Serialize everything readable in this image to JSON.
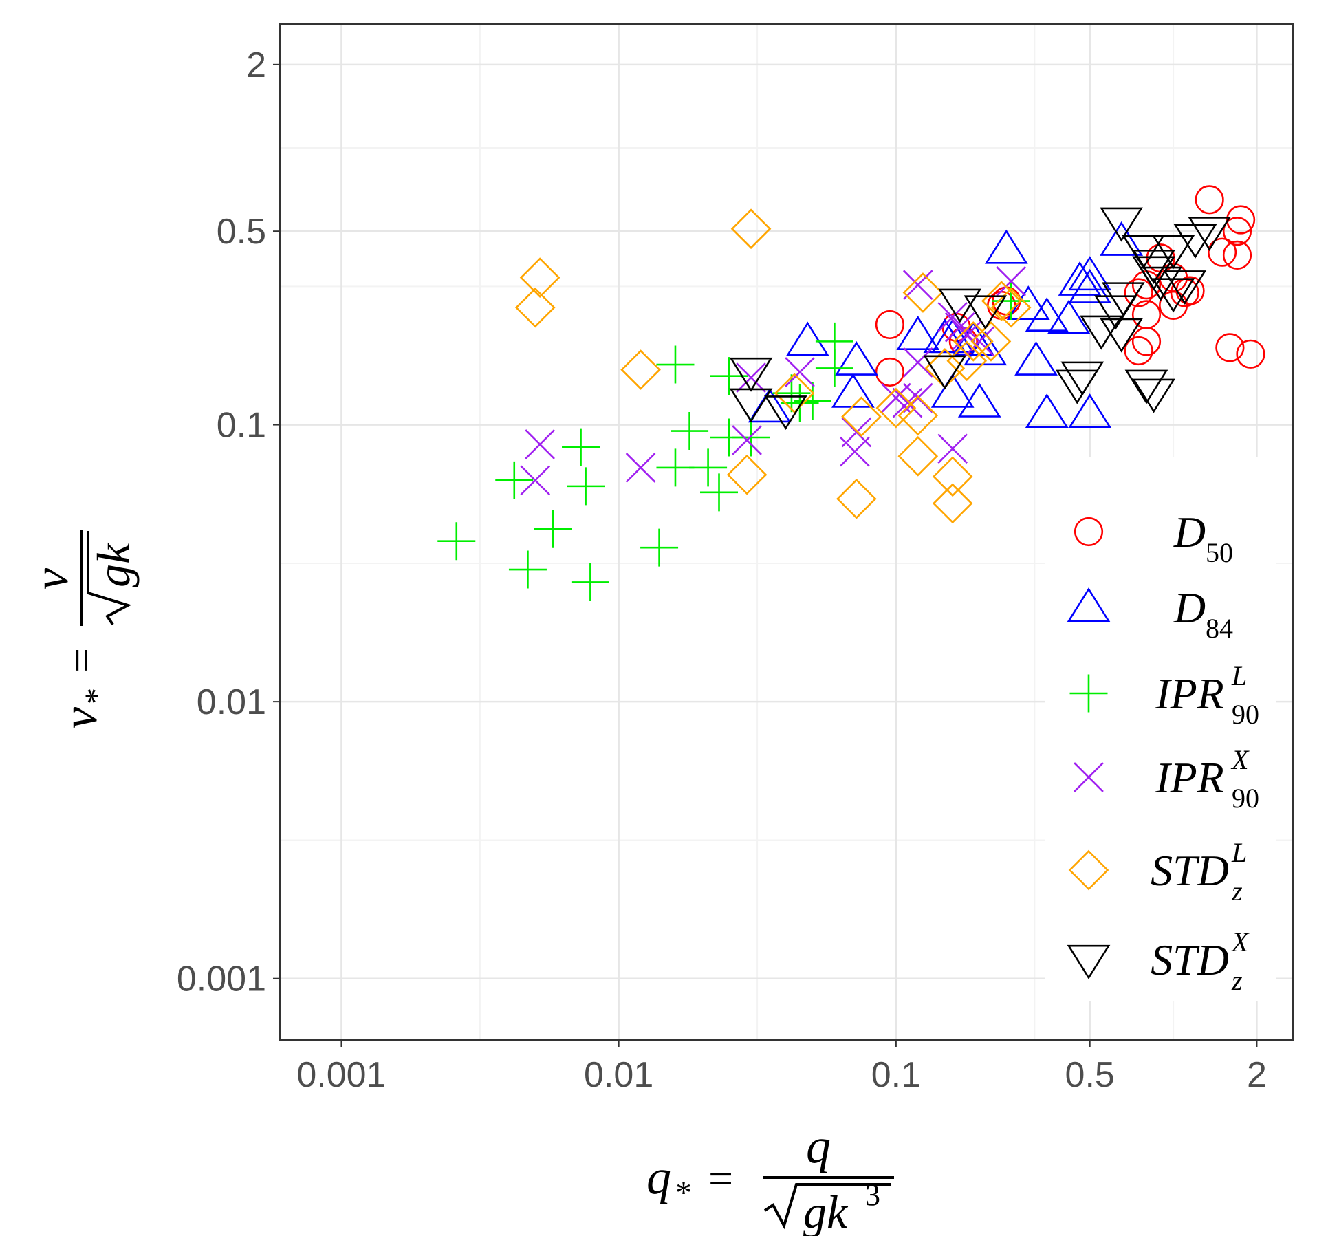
{
  "chart_data": {
    "type": "scatter",
    "x_scale": "log",
    "y_scale": "log",
    "xlim": [
      0.0006,
      2.7
    ],
    "ylim": [
      0.0006,
      2.8
    ],
    "x_ticks": [
      {
        "value": 0.001,
        "label": "0.001"
      },
      {
        "value": 0.01,
        "label": "0.01"
      },
      {
        "value": 0.1,
        "label": "0.1"
      },
      {
        "value": 0.5,
        "label": "0.5"
      },
      {
        "value": 2,
        "label": "2"
      }
    ],
    "y_ticks": [
      {
        "value": 0.001,
        "label": "0.001"
      },
      {
        "value": 0.01,
        "label": "0.01"
      },
      {
        "value": 0.1,
        "label": "0.1"
      },
      {
        "value": 0.5,
        "label": "0.5"
      },
      {
        "value": 2,
        "label": "2"
      }
    ],
    "x_minor_grid": [
      0.00316,
      0.0316,
      0.316,
      1
    ],
    "y_minor_grid": [
      0.00316,
      0.0316,
      0.316,
      1
    ],
    "grid": true,
    "legend_position": "right",
    "xlabel": {
      "lhs": "q",
      "lhs_sub": "*",
      "num": "q",
      "den": "gk",
      "den_sup": "3"
    },
    "ylabel": {
      "lhs": "v",
      "lhs_sub": "*",
      "num": "v",
      "den": "gk"
    },
    "series": [
      {
        "name": "D50",
        "label_main": "D",
        "label_sub": "50",
        "label_sup": "",
        "marker": "circle",
        "color": "#ff0000",
        "points": [
          [
            0.095,
            0.23
          ],
          [
            0.095,
            0.155
          ],
          [
            0.165,
            0.225
          ],
          [
            0.175,
            0.2
          ],
          [
            0.24,
            0.27
          ],
          [
            0.25,
            0.28
          ],
          [
            0.8,
            0.32
          ],
          [
            0.75,
            0.3
          ],
          [
            0.9,
            0.4
          ],
          [
            1.0,
            0.34
          ],
          [
            1.1,
            0.3
          ],
          [
            1.15,
            0.305
          ],
          [
            1.0,
            0.27
          ],
          [
            0.8,
            0.25
          ],
          [
            1.35,
            0.65
          ],
          [
            1.5,
            0.42
          ],
          [
            1.7,
            0.5
          ],
          [
            1.75,
            0.55
          ],
          [
            1.7,
            0.41
          ],
          [
            1.6,
            0.19
          ],
          [
            1.9,
            0.18
          ],
          [
            0.75,
            0.185
          ],
          [
            0.8,
            0.2
          ]
        ]
      },
      {
        "name": "D84",
        "label_main": "D",
        "label_sub": "84",
        "label_sup": "",
        "marker": "triangle-up",
        "color": "#0000ff",
        "points": [
          [
            0.035,
            0.115
          ],
          [
            0.048,
            0.2
          ],
          [
            0.07,
            0.13
          ],
          [
            0.072,
            0.17
          ],
          [
            0.12,
            0.21
          ],
          [
            0.16,
            0.205
          ],
          [
            0.16,
            0.13
          ],
          [
            0.19,
            0.2
          ],
          [
            0.2,
            0.12
          ],
          [
            0.25,
            0.43
          ],
          [
            0.3,
            0.27
          ],
          [
            0.32,
            0.17
          ],
          [
            0.35,
            0.245
          ],
          [
            0.35,
            0.11
          ],
          [
            0.42,
            0.24
          ],
          [
            0.46,
            0.33
          ],
          [
            0.5,
            0.31
          ],
          [
            0.5,
            0.345
          ],
          [
            0.5,
            0.11
          ],
          [
            0.65,
            0.46
          ],
          [
            0.21,
            0.185
          ],
          [
            0.15,
            0.205
          ]
        ]
      },
      {
        "name": "IPR90L",
        "label_main": "IPR",
        "label_sub": "90",
        "label_sup": "L",
        "marker": "plus",
        "color": "#00ee00",
        "points": [
          [
            0.0026,
            0.038
          ],
          [
            0.0042,
            0.063
          ],
          [
            0.0047,
            0.03
          ],
          [
            0.0058,
            0.042
          ],
          [
            0.0073,
            0.083
          ],
          [
            0.0076,
            0.06
          ],
          [
            0.0079,
            0.027
          ],
          [
            0.014,
            0.036
          ],
          [
            0.016,
            0.07
          ],
          [
            0.016,
            0.165
          ],
          [
            0.018,
            0.095
          ],
          [
            0.021,
            0.07
          ],
          [
            0.023,
            0.057
          ],
          [
            0.025,
            0.09
          ],
          [
            0.025,
            0.15
          ],
          [
            0.03,
            0.09
          ],
          [
            0.042,
            0.13
          ],
          [
            0.045,
            0.12
          ],
          [
            0.05,
            0.122
          ],
          [
            0.06,
            0.16
          ],
          [
            0.06,
            0.2
          ],
          [
            0.26,
            0.28
          ]
        ]
      },
      {
        "name": "IPR90X",
        "label_main": "IPR",
        "label_sub": "90",
        "label_sup": "X",
        "marker": "cross",
        "color": "#a020f0",
        "points": [
          [
            0.005,
            0.063
          ],
          [
            0.0052,
            0.085
          ],
          [
            0.012,
            0.07
          ],
          [
            0.029,
            0.088
          ],
          [
            0.03,
            0.148
          ],
          [
            0.045,
            0.155
          ],
          [
            0.071,
            0.08
          ],
          [
            0.072,
            0.094
          ],
          [
            0.1,
            0.125
          ],
          [
            0.11,
            0.12
          ],
          [
            0.12,
            0.125
          ],
          [
            0.12,
            0.168
          ],
          [
            0.12,
            0.32
          ],
          [
            0.16,
            0.245
          ],
          [
            0.17,
            0.225
          ],
          [
            0.18,
            0.21
          ],
          [
            0.2,
            0.2
          ],
          [
            0.16,
            0.082
          ],
          [
            0.26,
            0.33
          ]
        ]
      },
      {
        "name": "STDzL",
        "label_main": "STD",
        "label_sub": "z",
        "label_sup": "L",
        "marker": "diamond",
        "color": "#ffa500",
        "points": [
          [
            0.005,
            0.265
          ],
          [
            0.0052,
            0.34
          ],
          [
            0.012,
            0.158
          ],
          [
            0.03,
            0.51
          ],
          [
            0.029,
            0.066
          ],
          [
            0.072,
            0.054
          ],
          [
            0.075,
            0.107
          ],
          [
            0.1,
            0.115
          ],
          [
            0.12,
            0.077
          ],
          [
            0.12,
            0.108
          ],
          [
            0.125,
            0.3
          ],
          [
            0.16,
            0.052
          ],
          [
            0.16,
            0.065
          ],
          [
            0.15,
            0.16
          ],
          [
            0.18,
            0.17
          ],
          [
            0.19,
            0.2
          ],
          [
            0.22,
            0.2
          ],
          [
            0.24,
            0.28
          ],
          [
            0.26,
            0.265
          ],
          [
            0.043,
            0.13
          ]
        ]
      },
      {
        "name": "STDzX",
        "label_main": "STD",
        "label_sub": "z",
        "label_sup": "X",
        "marker": "triangle-down",
        "color": "#000000",
        "points": [
          [
            0.03,
            0.155
          ],
          [
            0.03,
            0.12
          ],
          [
            0.04,
            0.113
          ],
          [
            0.15,
            0.158
          ],
          [
            0.17,
            0.275
          ],
          [
            0.21,
            0.26
          ],
          [
            0.45,
            0.14
          ],
          [
            0.47,
            0.15
          ],
          [
            0.55,
            0.22
          ],
          [
            0.62,
            0.26
          ],
          [
            0.65,
            0.215
          ],
          [
            0.66,
            0.29
          ],
          [
            0.65,
            0.54
          ],
          [
            0.78,
            0.43
          ],
          [
            0.85,
            0.36
          ],
          [
            0.85,
            0.38
          ],
          [
            0.9,
            0.33
          ],
          [
            1.0,
            0.3
          ],
          [
            1.0,
            0.43
          ],
          [
            1.2,
            0.47
          ],
          [
            1.35,
            0.5
          ],
          [
            0.8,
            0.14
          ],
          [
            0.85,
            0.13
          ],
          [
            1.1,
            0.32
          ]
        ]
      }
    ]
  }
}
